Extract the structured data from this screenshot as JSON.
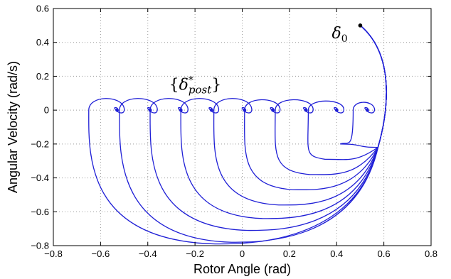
{
  "chart_data": {
    "type": "line",
    "title": "",
    "xlabel": "Rotor Angle (rad)",
    "ylabel": "Angular Velocity (rad/s)",
    "xlim": [
      -0.8,
      0.8
    ],
    "ylim": [
      -0.8,
      0.6
    ],
    "xticks": [
      -0.8,
      -0.6,
      -0.4,
      -0.2,
      0,
      0.2,
      0.4,
      0.6,
      0.8
    ],
    "yticks": [
      -0.8,
      -0.6,
      -0.4,
      -0.2,
      0,
      0.2,
      0.4,
      0.6
    ],
    "xtick_labels": [
      "−0.8",
      "−0.6",
      "−0.4",
      "−0.2",
      "0",
      "0.2",
      "0.4",
      "0.6",
      "0.8"
    ],
    "ytick_labels": [
      "−0.8",
      "−0.6",
      "−0.4",
      "−0.2",
      "0",
      "0.2",
      "0.4",
      "0.6"
    ],
    "grid": true,
    "line_color": "#1f1fd6",
    "initial_point": {
      "x": 0.5,
      "y": 0.5,
      "label": "δ0"
    },
    "equilibria_label": "{δ*post}",
    "series": [
      {
        "end_x": -0.53,
        "min_y": -0.79,
        "loop_left_x": -0.65,
        "loop_top_y": 0.09
      },
      {
        "end_x": -0.39,
        "min_y": -0.78,
        "loop_left_x": -0.52,
        "loop_top_y": 0.09
      },
      {
        "end_x": -0.26,
        "min_y": -0.71,
        "loop_left_x": -0.39,
        "loop_top_y": 0.09
      },
      {
        "end_x": -0.13,
        "min_y": -0.64,
        "loop_left_x": -0.26,
        "loop_top_y": 0.09
      },
      {
        "end_x": 0.01,
        "min_y": -0.56,
        "loop_left_x": -0.12,
        "loop_top_y": 0.09
      },
      {
        "end_x": 0.13,
        "min_y": -0.47,
        "loop_left_x": 0.01,
        "loop_top_y": 0.08
      },
      {
        "end_x": 0.27,
        "min_y": -0.38,
        "loop_left_x": 0.14,
        "loop_top_y": 0.08
      },
      {
        "end_x": 0.4,
        "min_y": -0.29,
        "loop_left_x": 0.28,
        "loop_top_y": 0.07
      },
      {
        "end_x": 0.53,
        "min_y": -0.2,
        "loop_left_x": 0.47,
        "loop_top_y": 0.06
      }
    ]
  }
}
